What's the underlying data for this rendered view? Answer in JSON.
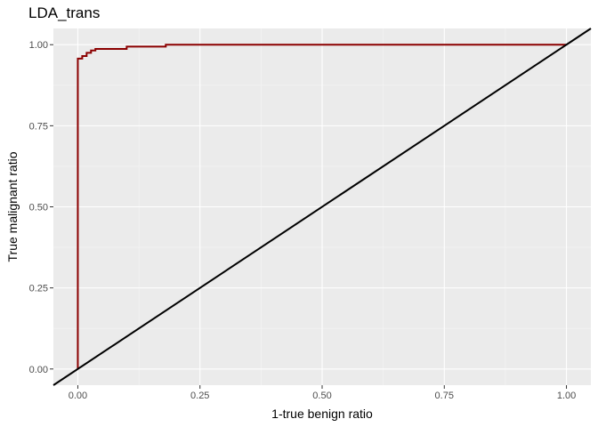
{
  "chart_data": {
    "type": "line",
    "title": "LDA_trans",
    "xlabel": "1-true benign ratio",
    "ylabel": "True malignant ratio",
    "xlim": [
      -0.05,
      1.05
    ],
    "ylim": [
      -0.05,
      1.05
    ],
    "x_ticks": [
      "0.00",
      "0.25",
      "0.50",
      "0.75",
      "1.00"
    ],
    "y_ticks": [
      "0.00",
      "0.25",
      "0.50",
      "0.75",
      "1.00"
    ],
    "grid": true,
    "legend": "none",
    "series": [
      {
        "color": "#8b0000",
        "x": [
          0,
          0,
          0.009,
          0.009,
          0.018,
          0.018,
          0.027,
          0.027,
          0.036,
          0.036,
          0.1,
          0.1,
          0.18,
          0.18,
          1.0
        ],
        "y": [
          0,
          0.957,
          0.957,
          0.965,
          0.965,
          0.975,
          0.975,
          0.982,
          0.982,
          0.987,
          0.987,
          0.994,
          0.994,
          1.0,
          1.0
        ]
      },
      {
        "color": "#000000",
        "x": [
          -0.05,
          1.05
        ],
        "y": [
          -0.05,
          1.05
        ]
      }
    ]
  }
}
